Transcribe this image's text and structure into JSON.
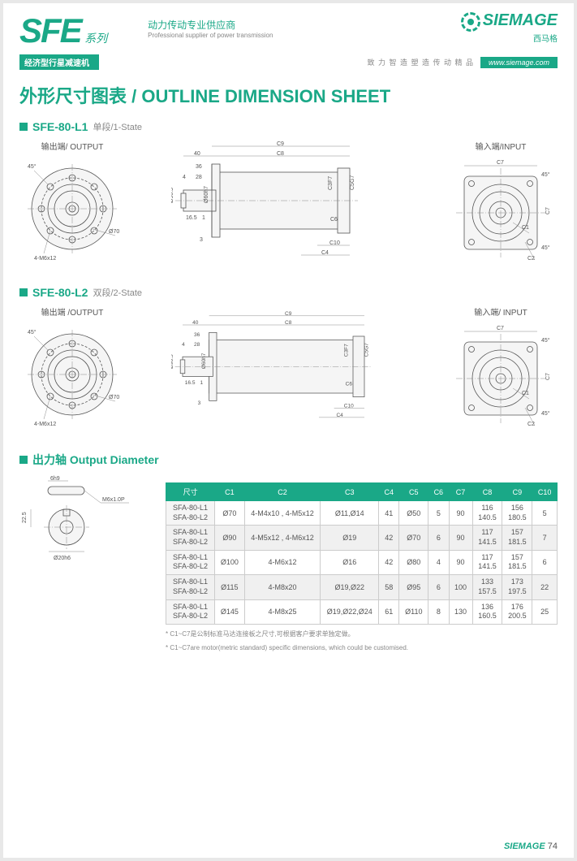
{
  "header": {
    "series_code": "SFE",
    "series_cn": "系列",
    "tagline_cn": "动力传动专业供应商",
    "tagline_en": "Professional supplier of power transmission",
    "brand": "SIEMAGE",
    "brand_cn": "西马格",
    "bar_label": "经济型行星减速机",
    "bar_mid": "致 力 智 造 塑 造 传 动 精 品",
    "bar_url": "www.siemage.com"
  },
  "main_title": "外形尺寸图表 / OUTLINE DIMENSION SHEET",
  "sections": {
    "s1": {
      "title": "SFE-80-L1",
      "sub": "单段/1-State"
    },
    "s2": {
      "title": "SFE-80-L2",
      "sub": "双段/2-State"
    },
    "s3": {
      "title": "出力轴 Output Diameter"
    }
  },
  "labels": {
    "output": "输出端/ OUTPUT",
    "input": "输入端/INPUT",
    "output2": "输出端 /OUTPUT",
    "input2": "输入端/ INPUT"
  },
  "dims": {
    "flange_bolt": "4-M6x12",
    "flange_dia": "Ø70",
    "angle45": "45°",
    "d90": "Ø90.5",
    "d60": "Ø60h7",
    "l40": "40",
    "l36": "36",
    "l28": "28",
    "l4": "4",
    "l16_5": "16.5",
    "l1": "1",
    "l3": "3",
    "c8": "C8",
    "c9": "C9",
    "c4": "C4",
    "c6": "C6",
    "c10": "C10",
    "c3f7": "C3F7",
    "c5g7": "C5G7",
    "c7": "C7",
    "c7v": "C7",
    "c1": "C1",
    "c2": "C2",
    "shaft_6h9": "6h9",
    "shaft_thread": "M6x1.0P",
    "shaft_22_5": "22.5",
    "shaft_d20": "Ø20h6"
  },
  "table": {
    "headers": [
      "尺寸",
      "C1",
      "C2",
      "C3",
      "C4",
      "C5",
      "C6",
      "C7",
      "C8",
      "C9",
      "C10"
    ],
    "rows": [
      {
        "m1": "SFA-80-L1",
        "m2": "SFA-80-L2",
        "c1": "Ø70",
        "c2": "4-M4x10 , 4-M5x12",
        "c3": "Ø11,Ø14",
        "c4": "41",
        "c5": "Ø50",
        "c6": "5",
        "c7": "90",
        "c8a": "116",
        "c8b": "140.5",
        "c9a": "156",
        "c9b": "180.5",
        "c10": "5"
      },
      {
        "m1": "SFA-80-L1",
        "m2": "SFA-80-L2",
        "c1": "Ø90",
        "c2": "4-M5x12 , 4-M6x12",
        "c3": "Ø19",
        "c4": "42",
        "c5": "Ø70",
        "c6": "6",
        "c7": "90",
        "c8a": "117",
        "c8b": "141.5",
        "c9a": "157",
        "c9b": "181.5",
        "c10": "7"
      },
      {
        "m1": "SFA-80-L1",
        "m2": "SFA-80-L2",
        "c1": "Ø100",
        "c2": "4-M6x12",
        "c3": "Ø16",
        "c4": "42",
        "c5": "Ø80",
        "c6": "4",
        "c7": "90",
        "c8a": "117",
        "c8b": "141.5",
        "c9a": "157",
        "c9b": "181.5",
        "c10": "6"
      },
      {
        "m1": "SFA-80-L1",
        "m2": "SFA-80-L2",
        "c1": "Ø115",
        "c2": "4-M8x20",
        "c3": "Ø19,Ø22",
        "c4": "58",
        "c5": "Ø95",
        "c6": "6",
        "c7": "100",
        "c8a": "133",
        "c8b": "157.5",
        "c9a": "173",
        "c9b": "197.5",
        "c10": "22"
      },
      {
        "m1": "SFA-80-L1",
        "m2": "SFA-80-L2",
        "c1": "Ø145",
        "c2": "4-M8x25",
        "c3": "Ø19,Ø22,Ø24",
        "c4": "61",
        "c5": "Ø110",
        "c6": "8",
        "c7": "130",
        "c8a": "136",
        "c8b": "160.5",
        "c9a": "176",
        "c9b": "200.5",
        "c10": "25"
      }
    ]
  },
  "footnote_cn": "* C1~C7是公制标准马达连接板之尺寸,可根据客户要求单独定做。",
  "footnote_en": "* C1~C7are motor(metric standard)  specific dimensions, which could be customised.",
  "footer": {
    "brand": "SIEMAGE",
    "page": "74"
  },
  "colors": {
    "accent": "#1aa887",
    "text": "#555555",
    "bg": "#ffffff"
  }
}
